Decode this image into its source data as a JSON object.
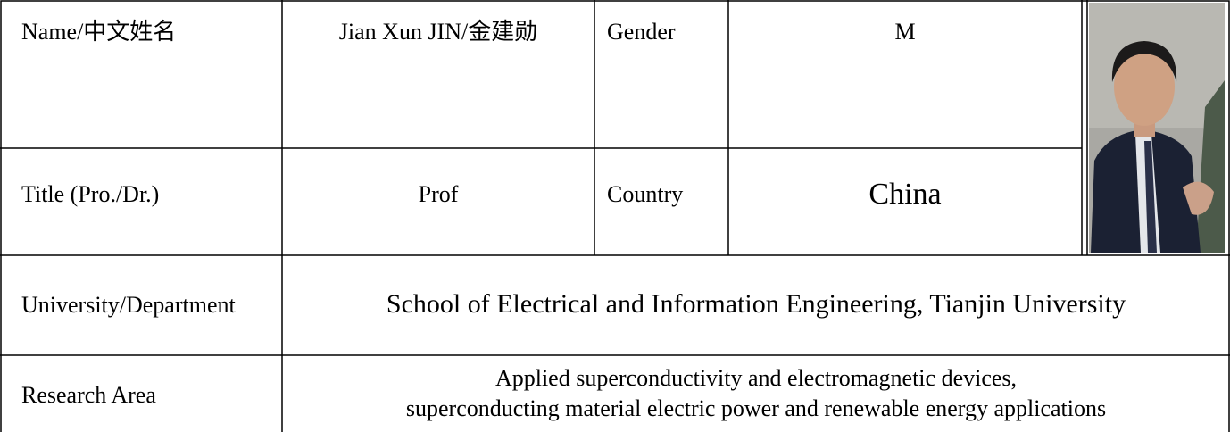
{
  "table": {
    "rows": [
      [
        "Name/中文姓名",
        "Jian Xun JIN/金建勋",
        "Gender",
        "M"
      ],
      [
        "Title (Pro./Dr.)",
        "Prof",
        "Country",
        "China"
      ],
      [
        "University/Department",
        "School of Electrical and Information Engineering, Tianjin University"
      ],
      [
        "Research Area",
        "Applied superconductivity and electromagnetic devices,",
        "superconducting material electric power and renewable energy applications"
      ]
    ]
  }
}
